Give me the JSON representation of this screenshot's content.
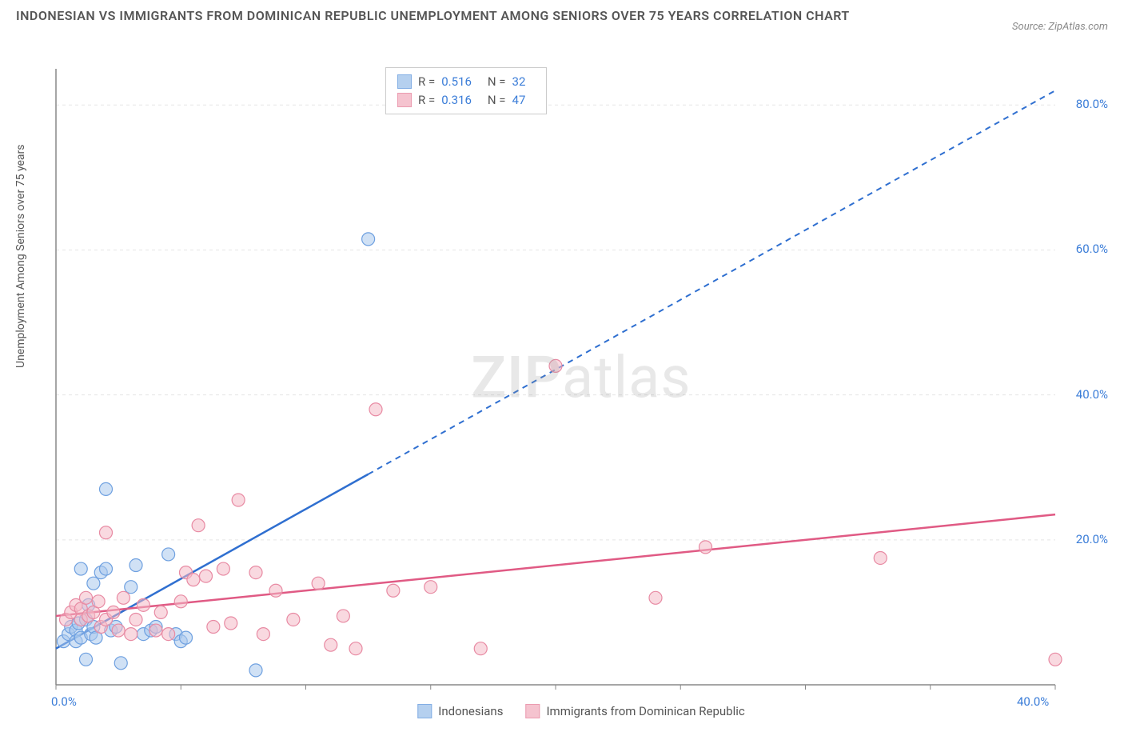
{
  "title": "INDONESIAN VS IMMIGRANTS FROM DOMINICAN REPUBLIC UNEMPLOYMENT AMONG SENIORS OVER 75 YEARS CORRELATION CHART",
  "source": "Source: ZipAtlas.com",
  "y_axis_label": "Unemployment Among Seniors over 75 years",
  "watermark_a": "ZIP",
  "watermark_b": "atlas",
  "chart": {
    "type": "scatter",
    "xlim": [
      0,
      40
    ],
    "ylim": [
      0,
      85
    ],
    "x_ticks": [
      0,
      40
    ],
    "x_tick_labels": [
      "0.0%",
      "40.0%"
    ],
    "y_ticks": [
      20,
      40,
      60,
      80
    ],
    "y_tick_labels": [
      "20.0%",
      "40.0%",
      "60.0%",
      "80.0%"
    ],
    "grid_color": "#e5e5e5",
    "axis_color": "#888888",
    "background_color": "#ffffff",
    "series": [
      {
        "name": "Indonesians",
        "fill_color": "#a9c8ed",
        "fill_opacity": 0.55,
        "stroke_color": "#6ea0e0",
        "line_color": "#2f6fd0",
        "R": "0.516",
        "N": "32",
        "marker_radius": 8,
        "trend": {
          "x1": 0,
          "y1": 5,
          "x2": 12.5,
          "y2": 35,
          "x3": 40,
          "y3": 82,
          "solid_to_x": 12.5
        },
        "points": [
          [
            0.3,
            6
          ],
          [
            0.5,
            7
          ],
          [
            0.6,
            8
          ],
          [
            0.8,
            7.5
          ],
          [
            0.8,
            6
          ],
          [
            0.9,
            8.5
          ],
          [
            1,
            16
          ],
          [
            1,
            6.5
          ],
          [
            1.2,
            9
          ],
          [
            1.3,
            11
          ],
          [
            1.4,
            7
          ],
          [
            1.5,
            14
          ],
          [
            1.5,
            8
          ],
          [
            1.6,
            6.5
          ],
          [
            1.8,
            15.5
          ],
          [
            2,
            16
          ],
          [
            2,
            27
          ],
          [
            2.2,
            7.5
          ],
          [
            2.4,
            8
          ],
          [
            2.6,
            3
          ],
          [
            3,
            13.5
          ],
          [
            3.2,
            16.5
          ],
          [
            3.5,
            7
          ],
          [
            3.8,
            7.5
          ],
          [
            4,
            8
          ],
          [
            4.5,
            18
          ],
          [
            4.8,
            7
          ],
          [
            5,
            6
          ],
          [
            5.2,
            6.5
          ],
          [
            8,
            2
          ],
          [
            12.5,
            61.5
          ],
          [
            1.2,
            3.5
          ]
        ]
      },
      {
        "name": "Immigrants from Dominican Republic",
        "fill_color": "#f4b9c7",
        "fill_opacity": 0.55,
        "stroke_color": "#e88aa3",
        "line_color": "#e05a84",
        "R": "0.316",
        "N": "47",
        "marker_radius": 8,
        "trend": {
          "x1": 0,
          "y1": 9.5,
          "x2": 40,
          "y2": 23.5,
          "solid_to_x": 40
        },
        "points": [
          [
            0.4,
            9
          ],
          [
            0.6,
            10
          ],
          [
            0.8,
            11
          ],
          [
            1,
            10.5
          ],
          [
            1,
            9
          ],
          [
            1.2,
            12
          ],
          [
            1.3,
            9.5
          ],
          [
            1.5,
            10
          ],
          [
            1.7,
            11.5
          ],
          [
            1.8,
            8
          ],
          [
            2,
            21
          ],
          [
            2,
            9
          ],
          [
            2.3,
            10
          ],
          [
            2.5,
            7.5
          ],
          [
            2.7,
            12
          ],
          [
            3,
            7
          ],
          [
            3.2,
            9
          ],
          [
            3.5,
            11
          ],
          [
            4,
            7.5
          ],
          [
            4.2,
            10
          ],
          [
            4.5,
            7
          ],
          [
            5,
            11.5
          ],
          [
            5.2,
            15.5
          ],
          [
            5.5,
            14.5
          ],
          [
            5.7,
            22
          ],
          [
            6,
            15
          ],
          [
            6.3,
            8
          ],
          [
            6.7,
            16
          ],
          [
            7,
            8.5
          ],
          [
            7.3,
            25.5
          ],
          [
            8,
            15.5
          ],
          [
            8.3,
            7
          ],
          [
            8.8,
            13
          ],
          [
            9.5,
            9
          ],
          [
            10.5,
            14
          ],
          [
            11,
            5.5
          ],
          [
            11.5,
            9.5
          ],
          [
            12,
            5
          ],
          [
            12.8,
            38
          ],
          [
            13.5,
            13
          ],
          [
            15,
            13.5
          ],
          [
            17,
            5
          ],
          [
            20,
            44
          ],
          [
            24,
            12
          ],
          [
            26,
            19
          ],
          [
            33,
            17.5
          ],
          [
            40,
            3.5
          ]
        ]
      }
    ]
  },
  "legend": {
    "series1_label": "Indonesians",
    "series2_label": "Immigrants from Dominican Republic"
  },
  "stats_labels": {
    "R": "R =",
    "N": "N ="
  }
}
